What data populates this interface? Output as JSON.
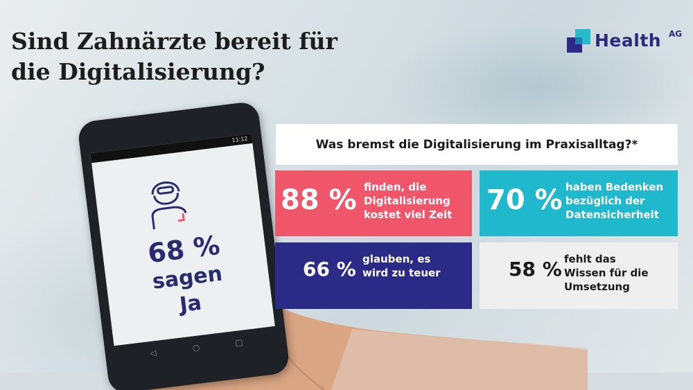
{
  "title": {
    "line1": "Sind Zahnärzte bereit für",
    "line2": "die Digitalisierung?"
  },
  "logo": {
    "word": "Health",
    "sup": "AG",
    "colors": {
      "navy": "#2a2a7e",
      "teal": "#27b9cc"
    }
  },
  "phone": {
    "status": "11:12",
    "percent": "68 %",
    "line1": "sagen",
    "line2": "Ja",
    "icon": "dentist-person-icon"
  },
  "panel": {
    "question": "Was bremst die Digitalisierung im Praxisalltag?*",
    "items": [
      {
        "percent": "88 %",
        "lines": [
          "finden, die",
          "Digitalisierung",
          "kostet viel Zeit"
        ],
        "color": "#f0566a"
      },
      {
        "percent": "70 %",
        "lines": [
          "haben Bedenken",
          "bezüglich der",
          "Datensicherheit"
        ],
        "color": "#20b8cc"
      },
      {
        "percent": "66 %",
        "lines": [
          "glauben, es",
          "wird zu teuer"
        ],
        "color": "#2b2a86"
      },
      {
        "percent": "58 %",
        "lines": [
          "fehlt das",
          "Wissen für die",
          "Umsetzung"
        ],
        "color": "#efefef"
      }
    ]
  }
}
